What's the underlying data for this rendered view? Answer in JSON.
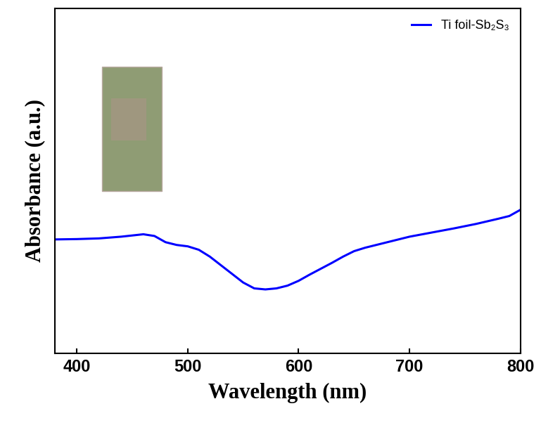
{
  "chart_data": {
    "type": "line",
    "x_label": "Wavelength (nm)",
    "y_label": "Absorbance (a.u.)",
    "x": [
      380,
      400,
      420,
      440,
      460,
      470,
      480,
      490,
      500,
      510,
      520,
      530,
      540,
      550,
      560,
      570,
      580,
      590,
      600,
      610,
      620,
      630,
      640,
      650,
      660,
      680,
      700,
      720,
      740,
      760,
      780,
      790,
      800
    ],
    "series": [
      {
        "name": "Ti foil-Sb₂S₃",
        "color": "#0000ff",
        "values": [
          0.33,
          0.331,
          0.333,
          0.338,
          0.345,
          0.34,
          0.322,
          0.314,
          0.31,
          0.3,
          0.28,
          0.255,
          0.23,
          0.205,
          0.188,
          0.185,
          0.188,
          0.196,
          0.21,
          0.228,
          0.245,
          0.262,
          0.28,
          0.296,
          0.306,
          0.322,
          0.338,
          0.35,
          0.362,
          0.375,
          0.39,
          0.398,
          0.416
        ]
      }
    ],
    "xlim": [
      380,
      800
    ],
    "xticks": [
      400,
      500,
      600,
      700,
      800
    ],
    "ylim": [
      0,
      1
    ],
    "yticks": [],
    "tick_labels": "x",
    "legend": "upper right"
  }
}
